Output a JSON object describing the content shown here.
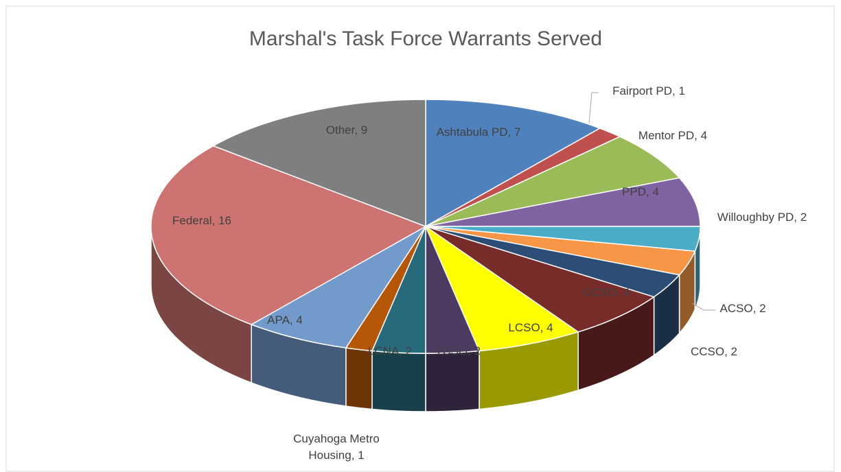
{
  "chart_data": {
    "type": "pie3d",
    "title": "Marshal's Task Force Warrants Served",
    "categories": [
      "Ashtabula PD",
      "Fairport PD",
      "Mentor PD",
      "PPD",
      "Willoughby PD",
      "ACSO",
      "CCSO",
      "GCSO",
      "LCSO",
      "TCSO",
      "LCNA",
      "Cuyahoga Metro Housing",
      "APA",
      "Federal",
      "Other"
    ],
    "values": [
      7,
      1,
      4,
      4,
      2,
      2,
      2,
      4,
      4,
      2,
      2,
      1,
      4,
      16,
      9
    ],
    "colors": [
      "#4f81bd",
      "#c0504d",
      "#9bbb59",
      "#8064a2",
      "#4bacc6",
      "#f79646",
      "#2c4d75",
      "#772c2a",
      "#ffff00",
      "#4d3b62",
      "#276a7c",
      "#b65708",
      "#729aca",
      "#cd7371",
      "#7f7f7f"
    ]
  }
}
